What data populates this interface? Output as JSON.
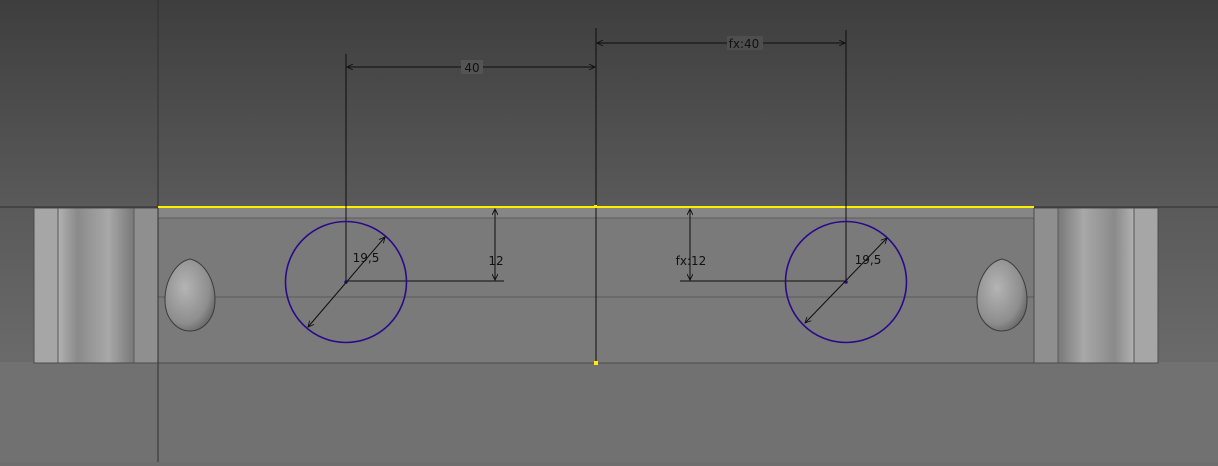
{
  "app": {
    "view": "sketch-viewport"
  },
  "colors": {
    "background_top": "#3e3e3e",
    "background_bottom": "#727272",
    "part_face": "#7b7b7b",
    "highlight_edge": "#ffee00",
    "sketch_circle": "#2a0a8a",
    "dimension_line": "#0d0d0d"
  },
  "sketch": {
    "dimensions": {
      "left_horizontal": "40",
      "right_horizontal": "fx:40",
      "left_diameter": "19,5",
      "right_diameter": "19,5",
      "left_vertical": "12",
      "right_vertical": "fx:12"
    }
  }
}
